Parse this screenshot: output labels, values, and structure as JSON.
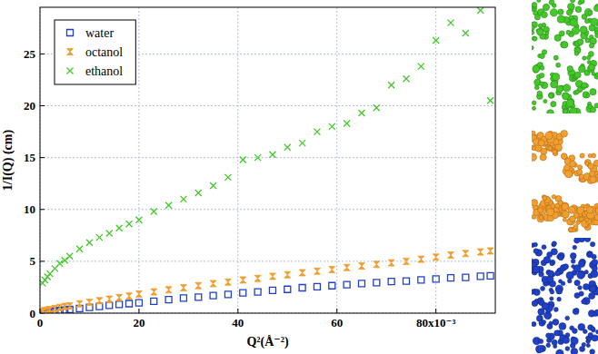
{
  "chart_data": {
    "type": "scatter",
    "x_label": "Q²(Å⁻²)",
    "y_label": "1/I(Q) (cm)",
    "xlim": [
      0,
      0.092
    ],
    "ylim": [
      0,
      29.5
    ],
    "xticks": [
      0,
      {
        "value": 0.02,
        "label": "20"
      },
      {
        "value": 0.04,
        "label": "40"
      },
      {
        "value": 0.06,
        "label": "60"
      },
      {
        "value": 0.08,
        "label": "80x10⁻³"
      }
    ],
    "yticks": [
      0,
      5,
      10,
      15,
      20,
      25
    ],
    "grid": true,
    "legend": "upper left",
    "x": [
      0.0005,
      0.001,
      0.0015,
      0.002,
      0.003,
      0.004,
      0.005,
      0.006,
      0.008,
      0.01,
      0.012,
      0.014,
      0.016,
      0.018,
      0.02,
      0.023,
      0.026,
      0.029,
      0.032,
      0.035,
      0.038,
      0.041,
      0.044,
      0.047,
      0.05,
      0.053,
      0.056,
      0.059,
      0.062,
      0.065,
      0.068,
      0.071,
      0.074,
      0.077,
      0.08,
      0.083,
      0.086,
      0.089,
      0.091
    ],
    "series": [
      {
        "name": "water",
        "color": "#2040c8",
        "marker": "square",
        "values": [
          0.05,
          0.1,
          0.12,
          0.15,
          0.2,
          0.25,
          0.3,
          0.35,
          0.45,
          0.55,
          0.65,
          0.75,
          0.85,
          0.92,
          1.0,
          1.15,
          1.3,
          1.45,
          1.55,
          1.7,
          1.8,
          1.95,
          2.05,
          2.2,
          2.3,
          2.45,
          2.55,
          2.65,
          2.75,
          2.85,
          2.95,
          3.05,
          3.1,
          3.2,
          3.3,
          3.4,
          3.45,
          3.55,
          3.6
        ]
      },
      {
        "name": "octanol",
        "color": "#f0a030",
        "marker": "hourglass",
        "values": [
          0.15,
          0.25,
          0.3,
          0.35,
          0.45,
          0.55,
          0.65,
          0.7,
          0.9,
          1.05,
          1.2,
          1.35,
          1.5,
          1.65,
          1.85,
          2.05,
          2.25,
          2.45,
          2.65,
          2.85,
          3.0,
          3.2,
          3.35,
          3.55,
          3.7,
          3.9,
          4.05,
          4.2,
          4.4,
          4.55,
          4.7,
          4.85,
          5.0,
          5.2,
          5.4,
          5.6,
          5.75,
          5.9,
          6.0
        ]
      },
      {
        "name": "ethanol",
        "color": "#44c82a",
        "marker": "x",
        "values": [
          2.9,
          3.2,
          3.5,
          3.8,
          4.3,
          4.8,
          5.1,
          5.5,
          6.2,
          6.8,
          7.3,
          7.7,
          8.2,
          8.6,
          9.0,
          9.8,
          10.4,
          11.0,
          11.6,
          12.3,
          13.1,
          14.8,
          15.0,
          15.3,
          16.0,
          16.4,
          17.5,
          18.0,
          18.3,
          19.3,
          19.8,
          22.0,
          22.6,
          23.8,
          26.3,
          28.0,
          27.0,
          29.2,
          20.5
        ]
      }
    ]
  }
}
